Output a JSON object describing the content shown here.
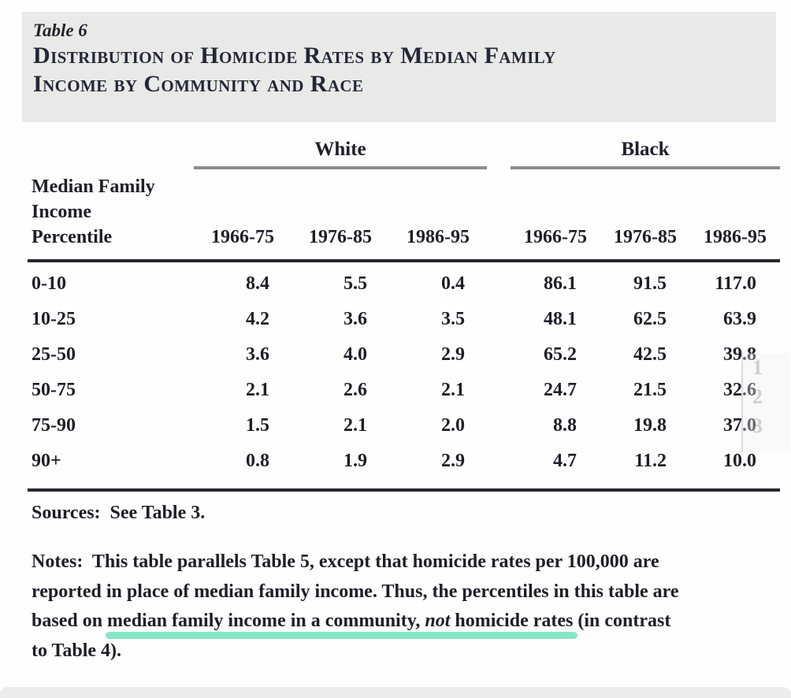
{
  "header": {
    "table_label": "Table 6",
    "title_line1": "Distribution of Homicide Rates by Median Family",
    "title_line2": "Income by Community and Race"
  },
  "table": {
    "group_headers": [
      "White",
      "Black"
    ],
    "stub_header_lines": [
      "Median Family",
      "Income",
      "Percentile"
    ],
    "period_headers": [
      "1966-75",
      "1976-85",
      "1986-95"
    ],
    "rows": [
      {
        "percentile": "0-10",
        "white": [
          "8.4",
          "5.5",
          "0.4"
        ],
        "black": [
          "86.1",
          "91.5",
          "117.0"
        ]
      },
      {
        "percentile": "10-25",
        "white": [
          "4.2",
          "3.6",
          "3.5"
        ],
        "black": [
          "48.1",
          "62.5",
          "63.9"
        ]
      },
      {
        "percentile": "25-50",
        "white": [
          "3.6",
          "4.0",
          "2.9"
        ],
        "black": [
          "65.2",
          "42.5",
          "39.8"
        ]
      },
      {
        "percentile": "50-75",
        "white": [
          "2.1",
          "2.6",
          "2.1"
        ],
        "black": [
          "24.7",
          "21.5",
          "32.6"
        ]
      },
      {
        "percentile": "75-90",
        "white": [
          "1.5",
          "2.1",
          "2.0"
        ],
        "black": [
          "8.8",
          "19.8",
          "37.0"
        ]
      },
      {
        "percentile": "90+",
        "white": [
          "0.8",
          "1.9",
          "2.9"
        ],
        "black": [
          "4.7",
          "11.2",
          "10.0"
        ]
      }
    ]
  },
  "footer": {
    "sources": "Sources:  See Table 3.",
    "notes_line1": "Notes:  This table parallels Table 5, except that homicide rates per 100,000 are",
    "notes_line2": "reported in place of median family income. Thus, the percentiles in this table are",
    "notes_line3_pre": "based on ",
    "notes_line3_hl_a": "median family income in a community, ",
    "notes_line3_hl_em": "not",
    "notes_line3_hl_b": " homicide rates",
    "notes_line3_post": " (in contrast",
    "notes_line4": "to Table 4)."
  },
  "ghost_overlay": {
    "items": [
      "1",
      "2",
      "3"
    ]
  },
  "colors": {
    "highlight": "#7fe4c4",
    "title_background": "#e9e9e7",
    "group_rule": "#8c8c8c",
    "heavy_rule": "#27272f",
    "text": "#1e1e28"
  }
}
